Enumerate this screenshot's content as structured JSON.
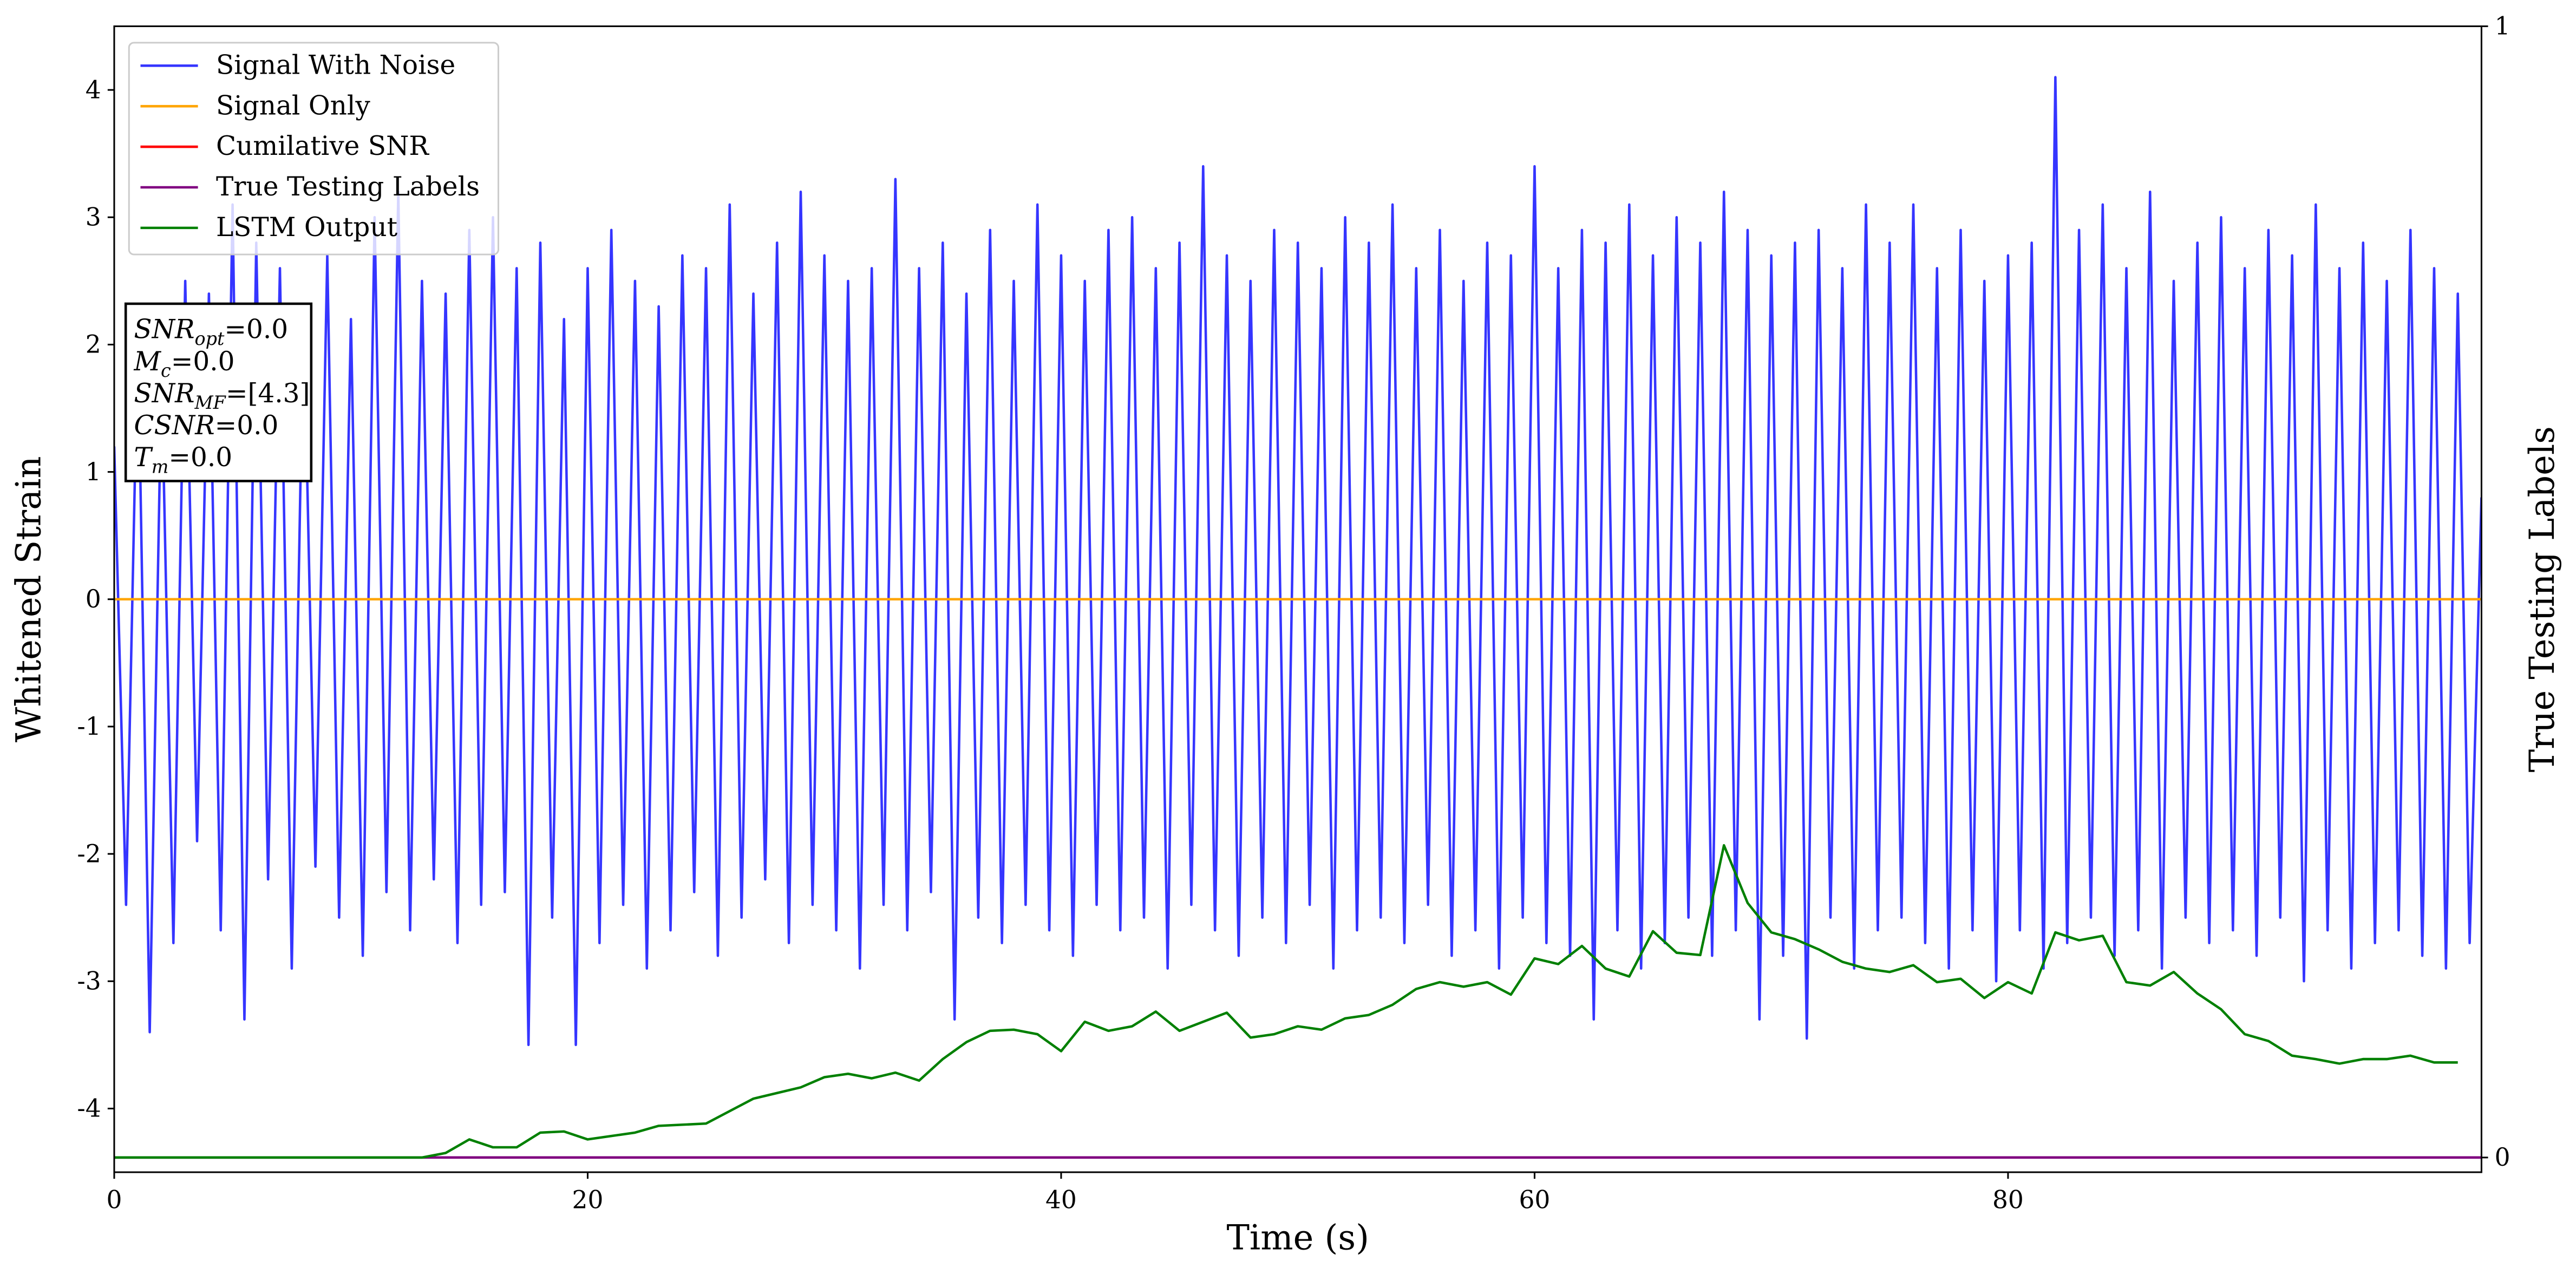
{
  "chart_data": {
    "type": "line",
    "xlabel": "Time (s)",
    "ylabel": "Whitened Strain",
    "y2label": "True Testing Labels",
    "xlim": [
      0,
      100
    ],
    "xticks": [
      0,
      20,
      40,
      60,
      80
    ],
    "ylim": [
      -4.5,
      4.5
    ],
    "yticks": [
      -4,
      -3,
      -2,
      -1,
      0,
      1,
      2,
      3,
      4
    ],
    "y2lim": [
      -0.013,
      1
    ],
    "y2ticks": [
      0,
      1
    ],
    "grid": false,
    "legend_position": "upper left",
    "annotations": [
      {
        "symbol": "SNR",
        "subscript": "opt",
        "text": "=0.0"
      },
      {
        "symbol": "M",
        "subscript": "c",
        "text": "=0.0"
      },
      {
        "symbol": "SNR",
        "subscript": "MF",
        "text": "=[4.3]"
      },
      {
        "symbol": "CSNR",
        "text": "=0.0"
      },
      {
        "symbol": "T",
        "subscript": "m",
        "text": "=0.0"
      }
    ],
    "series": [
      {
        "name": "Signal With Noise",
        "color": "#3535ff",
        "x": [
          0,
          0.5,
          1,
          1.5,
          2,
          2.5,
          3,
          3.5,
          4,
          4.5,
          5,
          5.5,
          6,
          6.5,
          7,
          7.5,
          8,
          8.5,
          9,
          9.5,
          10,
          10.5,
          11,
          11.5,
          12,
          12.5,
          13,
          13.5,
          14,
          14.5,
          15,
          15.5,
          16,
          16.5,
          17,
          17.5,
          18,
          18.5,
          19,
          19.5,
          20,
          20.5,
          21,
          21.5,
          22,
          22.5,
          23,
          23.5,
          24,
          24.5,
          25,
          25.5,
          26,
          26.5,
          27,
          27.5,
          28,
          28.5,
          29,
          29.5,
          30,
          30.5,
          31,
          31.5,
          32,
          32.5,
          33,
          33.5,
          34,
          34.5,
          35,
          35.5,
          36,
          36.5,
          37,
          37.5,
          38,
          38.5,
          39,
          39.5,
          40,
          40.5,
          41,
          41.5,
          42,
          42.5,
          43,
          43.5,
          44,
          44.5,
          45,
          45.5,
          46,
          46.5,
          47,
          47.5,
          48,
          48.5,
          49,
          49.5,
          50,
          50.5,
          51,
          51.5,
          52,
          52.5,
          53,
          53.5,
          54,
          54.5,
          55,
          55.5,
          56,
          56.5,
          57,
          57.5,
          58,
          58.5,
          59,
          59.5,
          60,
          60.5,
          61,
          61.5,
          62,
          62.5,
          63,
          63.5,
          64,
          64.5,
          65,
          65.5,
          66,
          66.5,
          67,
          67.5,
          68,
          68.5,
          69,
          69.5,
          70,
          70.5,
          71,
          71.5,
          72,
          72.5,
          73,
          73.5,
          74,
          74.5,
          75,
          75.5,
          76,
          76.5,
          77,
          77.5,
          78,
          78.5,
          79,
          79.5,
          80,
          80.5,
          81,
          81.5,
          82,
          82.5,
          83,
          83.5,
          84,
          84.5,
          85,
          85.5,
          86,
          86.5,
          87,
          87.5,
          88,
          88.5,
          89,
          89.5,
          90,
          90.5,
          91,
          91.5,
          92,
          92.5,
          93,
          93.5,
          94,
          94.5,
          95,
          95.5,
          96,
          96.5,
          97,
          97.5,
          98,
          98.5,
          99,
          99.5,
          100
        ],
        "values": [
          1.2,
          -2.4,
          2.1,
          -3.4,
          1.8,
          -2.7,
          2.5,
          -1.9,
          2.4,
          -2.6,
          3.1,
          -3.3,
          2.8,
          -2.2,
          2.6,
          -2.9,
          2.3,
          -2.1,
          2.7,
          -2.5,
          2.2,
          -2.8,
          3.0,
          -2.3,
          3.2,
          -2.6,
          2.5,
          -2.2,
          2.4,
          -2.7,
          2.9,
          -2.4,
          3.0,
          -2.3,
          2.6,
          -3.5,
          2.8,
          -2.5,
          2.2,
          -3.5,
          2.6,
          -2.7,
          2.9,
          -2.4,
          2.5,
          -2.9,
          2.3,
          -2.6,
          2.7,
          -2.3,
          2.6,
          -2.8,
          3.1,
          -2.5,
          2.4,
          -2.2,
          2.8,
          -2.7,
          3.2,
          -2.4,
          2.7,
          -2.6,
          2.5,
          -2.9,
          2.6,
          -2.4,
          3.3,
          -2.6,
          2.6,
          -2.3,
          2.8,
          -3.3,
          2.4,
          -2.5,
          2.9,
          -2.7,
          2.5,
          -2.4,
          3.1,
          -2.6,
          2.7,
          -2.8,
          2.5,
          -2.4,
          2.9,
          -2.6,
          3.0,
          -2.5,
          2.6,
          -2.9,
          2.8,
          -2.4,
          3.4,
          -2.6,
          2.7,
          -2.8,
          2.5,
          -2.5,
          2.9,
          -2.7,
          2.8,
          -2.4,
          2.6,
          -2.9,
          3.0,
          -2.6,
          2.8,
          -2.5,
          3.1,
          -2.7,
          2.6,
          -2.4,
          2.9,
          -2.8,
          2.5,
          -2.6,
          2.8,
          -2.9,
          2.7,
          -2.5,
          3.4,
          -2.7,
          2.6,
          -2.8,
          2.9,
          -3.3,
          2.8,
          -2.6,
          3.1,
          -2.9,
          2.7,
          -2.7,
          3.0,
          -2.5,
          2.8,
          -2.8,
          3.2,
          -2.6,
          2.9,
          -3.3,
          2.7,
          -2.8,
          2.8,
          -3.45,
          2.9,
          -2.5,
          2.6,
          -2.9,
          3.1,
          -2.6,
          2.8,
          -2.5,
          3.1,
          -2.7,
          2.6,
          -2.9,
          2.9,
          -2.6,
          2.5,
          -3.0,
          2.7,
          -2.6,
          2.8,
          -2.9,
          4.1,
          -2.7,
          2.9,
          -2.5,
          3.1,
          -2.8,
          2.6,
          -2.6,
          3.2,
          -2.9,
          2.5,
          -2.5,
          2.8,
          -2.7,
          3.0,
          -2.6,
          2.6,
          -2.8,
          2.9,
          -2.5,
          2.7,
          -3.0,
          3.1,
          -2.6,
          2.6,
          -2.9,
          2.8,
          -2.7,
          2.5,
          -2.6,
          2.9,
          -2.8,
          2.6,
          -2.9,
          2.4,
          -2.7,
          0.8
        ]
      },
      {
        "name": "Signal Only",
        "color": "#ffa500",
        "x": [
          0,
          100
        ],
        "values": [
          0,
          0
        ]
      },
      {
        "name": "Cumilative SNR",
        "color": "#ff0000",
        "x": [
          0,
          100
        ],
        "values": [
          0,
          0
        ]
      },
      {
        "name": "True Testing Labels",
        "color": "#800080",
        "axis": "y2",
        "x": [
          0,
          100
        ],
        "values": [
          0,
          0
        ]
      },
      {
        "name": "LSTM Output",
        "color": "#008000",
        "axis": "y2",
        "x": [
          0,
          1,
          2,
          3,
          4,
          5,
          6,
          7,
          8,
          9,
          10,
          11,
          12,
          13,
          14,
          15,
          16,
          17,
          18,
          19,
          20,
          21,
          22,
          23,
          24,
          25,
          26,
          27,
          28,
          29,
          30,
          31,
          32,
          33,
          34,
          35,
          36,
          37,
          38,
          39,
          40,
          41,
          42,
          43,
          44,
          45,
          46,
          47,
          48,
          49,
          50,
          51,
          52,
          53,
          54,
          55,
          56,
          57,
          58,
          59,
          60,
          61,
          62,
          63,
          64,
          65,
          66,
          67,
          68,
          69,
          70,
          71,
          72,
          73,
          74,
          75,
          76,
          77,
          78,
          79,
          80,
          81,
          82,
          83,
          84,
          85,
          86,
          87,
          88,
          89,
          90,
          91,
          92,
          93,
          94,
          95,
          96,
          97,
          98,
          99
        ],
        "values": [
          0,
          0,
          0,
          0,
          0,
          0,
          0,
          0,
          0,
          0,
          0,
          0,
          0,
          0,
          0.004,
          0.016,
          0.009,
          0.009,
          0.022,
          0.023,
          0.016,
          0.019,
          0.022,
          0.028,
          0.029,
          0.03,
          0.041,
          0.052,
          0.057,
          0.062,
          0.071,
          0.074,
          0.07,
          0.075,
          0.068,
          0.087,
          0.102,
          0.112,
          0.113,
          0.109,
          0.094,
          0.12,
          0.112,
          0.116,
          0.129,
          0.112,
          0.12,
          0.128,
          0.106,
          0.109,
          0.116,
          0.113,
          0.123,
          0.126,
          0.135,
          0.149,
          0.155,
          0.151,
          0.155,
          0.144,
          0.176,
          0.171,
          0.187,
          0.167,
          0.16,
          0.2,
          0.181,
          0.179,
          0.276,
          0.225,
          0.199,
          0.193,
          0.184,
          0.173,
          0.167,
          0.164,
          0.17,
          0.155,
          0.158,
          0.141,
          0.155,
          0.145,
          0.199,
          0.192,
          0.196,
          0.155,
          0.152,
          0.164,
          0.145,
          0.131,
          0.109,
          0.103,
          0.09,
          0.087,
          0.083,
          0.087,
          0.087,
          0.09,
          0.084,
          0.084
        ]
      }
    ]
  }
}
